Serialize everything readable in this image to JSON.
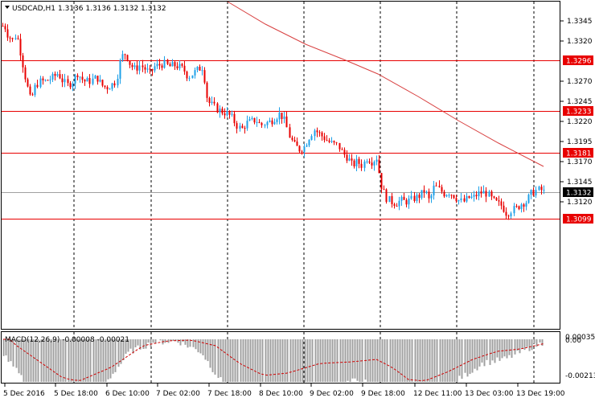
{
  "header": {
    "symbol_timeframe": "USDCAD,H1",
    "ohlc": "1.3136 1.3136 1.3132 1.3132"
  },
  "price_axis": {
    "ticks": [
      "1.3345",
      "1.3320",
      "1.3270",
      "1.3245",
      "1.3220",
      "1.3195",
      "1.3170",
      "1.3145",
      "1.3120"
    ],
    "tick_values": [
      1.3345,
      1.332,
      1.327,
      1.3245,
      1.322,
      1.3195,
      1.317,
      1.3145,
      1.312
    ],
    "level_tags": [
      {
        "label": "1.3296",
        "value": 1.3296,
        "color": "#e80000"
      },
      {
        "label": "1.3233",
        "value": 1.3233,
        "color": "#e80000"
      },
      {
        "label": "1.3181",
        "value": 1.3181,
        "color": "#e80000"
      },
      {
        "label": "1.3132",
        "value": 1.3132,
        "color": "#000000"
      },
      {
        "label": "1.3099",
        "value": 1.3099,
        "color": "#e80000"
      }
    ]
  },
  "time_axis": {
    "labels": [
      "5 Dec 2016",
      "5 Dec 18:00",
      "6 Dec 10:00",
      "7 Dec 02:00",
      "7 Dec 18:00",
      "8 Dec 10:00",
      "9 Dec 02:00",
      "9 Dec 18:00",
      "12 Dec 11:00",
      "13 Dec 03:00",
      "13 Dec 19:00"
    ]
  },
  "macd": {
    "label": "MACD(12,26,9) -0.00008 -0.00021",
    "ticks": [
      "0.00035",
      "0.00",
      "-0.00213"
    ]
  },
  "colors": {
    "bull": "#1ea0e8",
    "bear": "#e80000",
    "level_line": "#e80000",
    "ma_line": "#e05050",
    "grid": "#000000",
    "macd_hist": "#a0a0a0",
    "macd_signal": "#d00000"
  }
}
